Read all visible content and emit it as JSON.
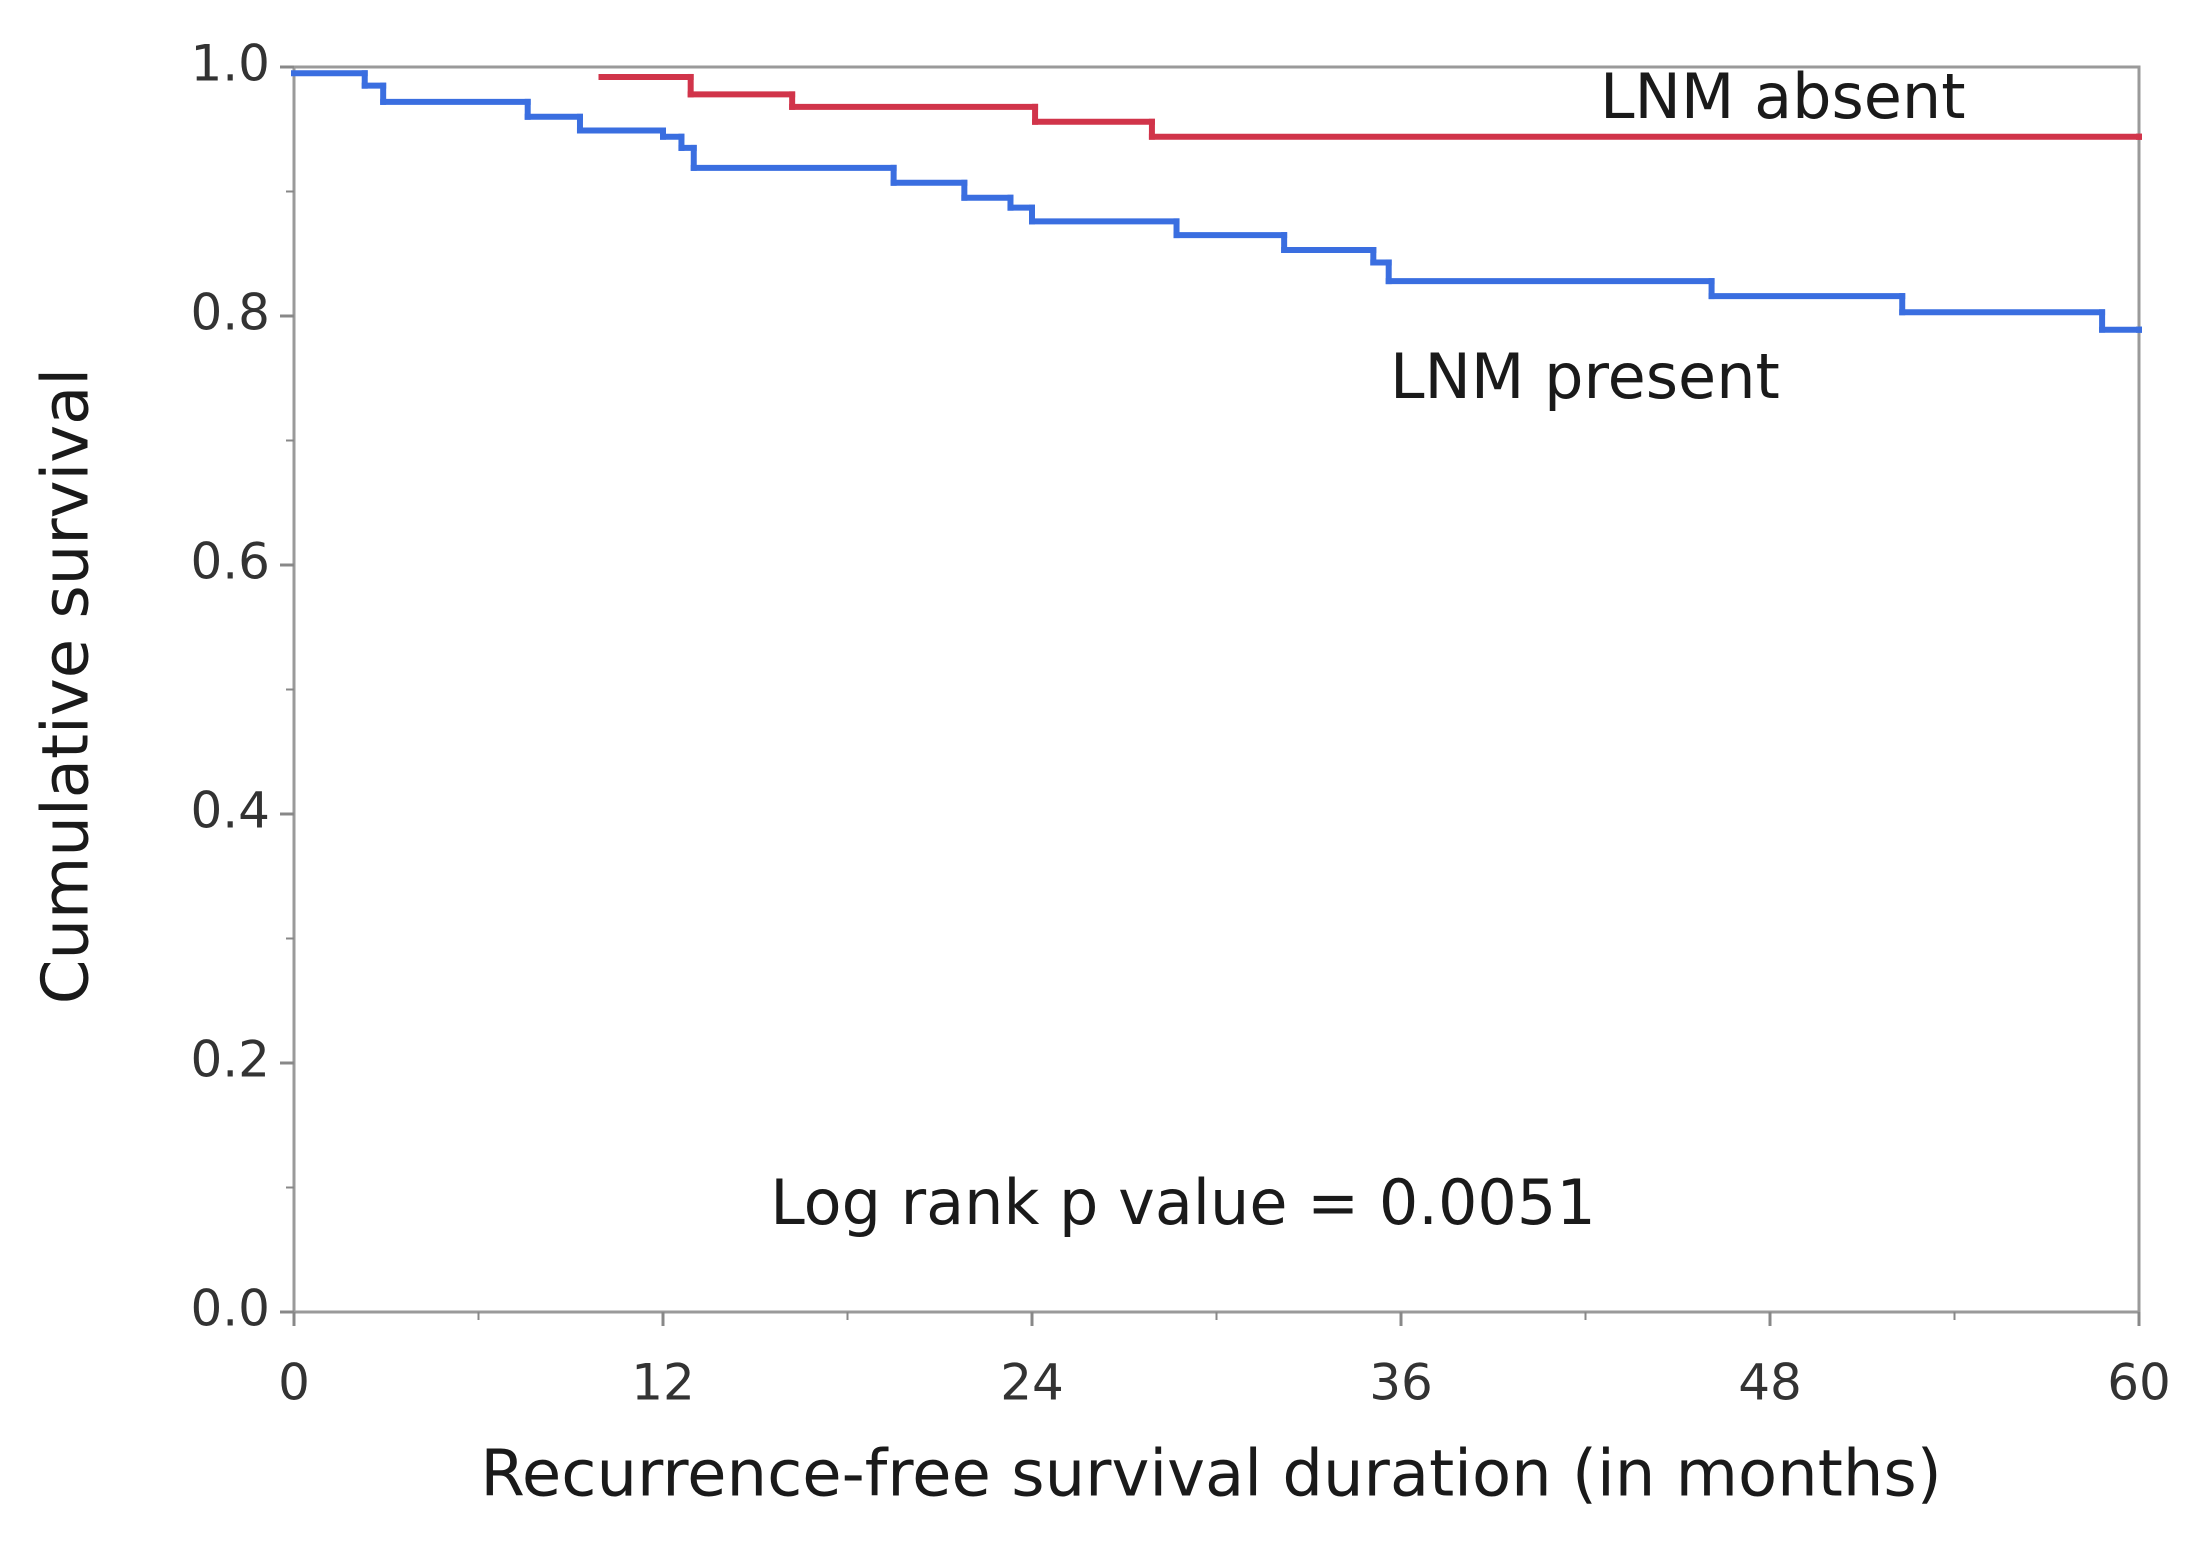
{
  "chart_data": {
    "type": "step",
    "xlabel": "Recurrence-free survival duration (in months)",
    "ylabel": "Cumulative survival",
    "annotation": "Log rank p value = 0.0051",
    "xlim": [
      0,
      60
    ],
    "xticks": [
      0,
      12,
      24,
      36,
      48,
      60
    ],
    "ylim": [
      0,
      1
    ],
    "yticks": [
      {
        "value": 0,
        "label": "0.0"
      },
      0.2,
      0.4,
      0.6,
      0.8,
      {
        "value": 1,
        "label": "1.0"
      }
    ],
    "series": [
      {
        "name": "LNM absent",
        "color": "#d1344a",
        "x": [
          10,
          12.9,
          16.2,
          24.1,
          27.9,
          60
        ],
        "values": [
          0.992,
          0.978,
          0.968,
          0.956,
          0.944,
          0.944
        ]
      },
      {
        "name": "LNM present",
        "color": "#3a6ee0",
        "x": [
          0,
          2.3,
          2.9,
          7.6,
          9.3,
          12,
          12.6,
          13,
          19.5,
          21.8,
          23.3,
          24,
          28.7,
          32.2,
          35.1,
          35.6,
          46.1,
          52.3,
          58.8,
          60
        ],
        "values": [
          0.995,
          0.985,
          0.972,
          0.96,
          0.949,
          0.944,
          0.935,
          0.919,
          0.907,
          0.895,
          0.887,
          0.876,
          0.865,
          0.853,
          0.843,
          0.828,
          0.816,
          0.803,
          0.789,
          0.789
        ]
      }
    ]
  }
}
